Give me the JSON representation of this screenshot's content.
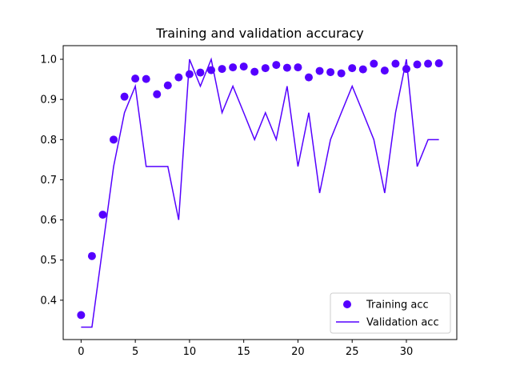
{
  "chart_data": {
    "type": "line",
    "title": "Training and validation accuracy",
    "xlabel": "",
    "ylabel": "",
    "xlim": [
      -1.65,
      34.65
    ],
    "ylim": [
      0.302,
      1.034
    ],
    "xticks": [
      0,
      5,
      10,
      15,
      20,
      25,
      30
    ],
    "yticks": [
      0.4,
      0.5,
      0.6,
      0.7,
      0.8,
      0.9,
      1.0
    ],
    "ytick_labels": [
      "0.4",
      "0.5",
      "0.6",
      "0.7",
      "0.8",
      "0.9",
      "1.0"
    ],
    "grid": false,
    "legend": "lower-right",
    "x": [
      0,
      1,
      2,
      3,
      4,
      5,
      6,
      7,
      8,
      9,
      10,
      11,
      12,
      13,
      14,
      15,
      16,
      17,
      18,
      19,
      20,
      21,
      22,
      23,
      24,
      25,
      26,
      27,
      28,
      29,
      30,
      31,
      32,
      33
    ],
    "series": [
      {
        "name": "Training acc",
        "style": "markers",
        "color": "#5500ff",
        "values": [
          0.363,
          0.51,
          0.613,
          0.8,
          0.907,
          0.952,
          0.951,
          0.913,
          0.935,
          0.955,
          0.963,
          0.967,
          0.973,
          0.976,
          0.98,
          0.982,
          0.969,
          0.978,
          0.986,
          0.979,
          0.98,
          0.955,
          0.971,
          0.968,
          0.965,
          0.978,
          0.975,
          0.989,
          0.972,
          0.989,
          0.976,
          0.987,
          0.989,
          0.99
        ]
      },
      {
        "name": "Validation acc",
        "style": "line",
        "color": "#5500ff",
        "values": [
          0.333,
          0.333,
          0.533,
          0.733,
          0.867,
          0.933,
          0.733,
          0.733,
          0.733,
          0.6,
          1.0,
          0.933,
          1.0,
          0.867,
          0.933,
          0.867,
          0.8,
          0.867,
          0.8,
          0.933,
          0.733,
          0.867,
          0.667,
          0.8,
          0.867,
          0.933,
          0.867,
          0.8,
          0.667,
          0.867,
          1.0,
          0.733,
          0.8,
          0.8
        ]
      }
    ]
  }
}
